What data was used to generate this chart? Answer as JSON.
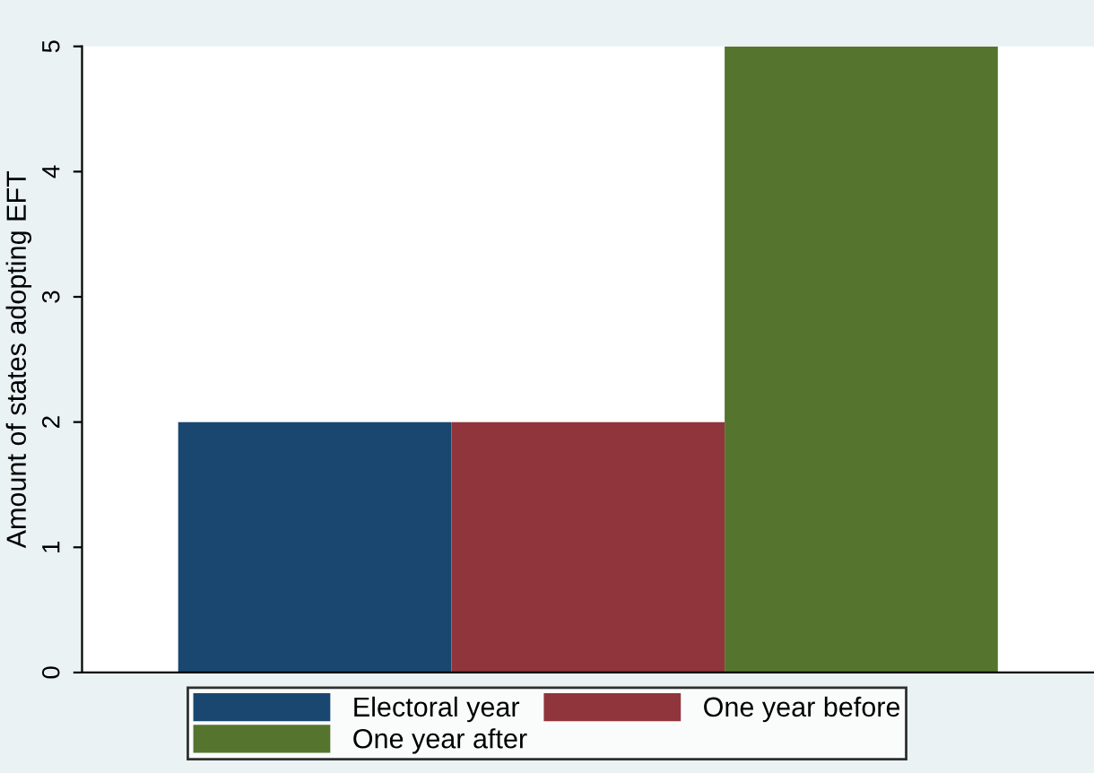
{
  "chart_data": {
    "type": "bar",
    "ylabel": "Amount of states adopting EFT",
    "categories": [
      null
    ],
    "series": [
      {
        "name": "Electoral year",
        "color": "#1a476f",
        "values": [
          2
        ]
      },
      {
        "name": "One year before",
        "color": "#90353b",
        "values": [
          2
        ]
      },
      {
        "name": "One year after",
        "color": "#55752f",
        "values": [
          5
        ]
      }
    ],
    "ylim": [
      0,
      5
    ],
    "yticks": [
      0,
      1,
      2,
      3,
      4,
      5
    ],
    "grid": false,
    "legend": "bottom"
  }
}
